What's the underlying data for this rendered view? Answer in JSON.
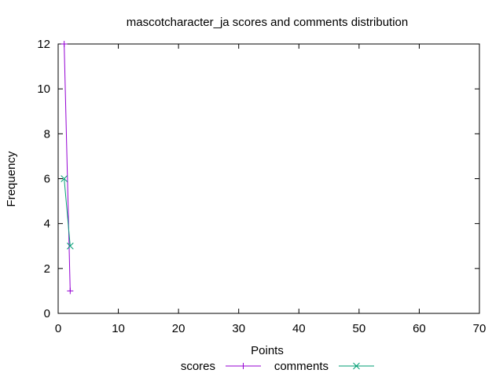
{
  "chart_data": {
    "type": "line",
    "title": "mascotcharacter_ja scores and comments distribution",
    "xlabel": "Points",
    "ylabel": "Frequency",
    "xlim": [
      0,
      70
    ],
    "ylim": [
      0,
      12
    ],
    "xticks": [
      0,
      10,
      20,
      30,
      40,
      50,
      60,
      70
    ],
    "yticks": [
      0,
      2,
      4,
      6,
      8,
      10,
      12
    ],
    "grid": false,
    "legend": "bottom",
    "series": [
      {
        "name": "scores",
        "color": "#9400d3",
        "marker": "plus",
        "points": [
          [
            1,
            12
          ],
          [
            2,
            1
          ]
        ]
      },
      {
        "name": "comments",
        "color": "#009e73",
        "marker": "cross",
        "points": [
          [
            1,
            6
          ],
          [
            2,
            3
          ]
        ]
      }
    ]
  }
}
